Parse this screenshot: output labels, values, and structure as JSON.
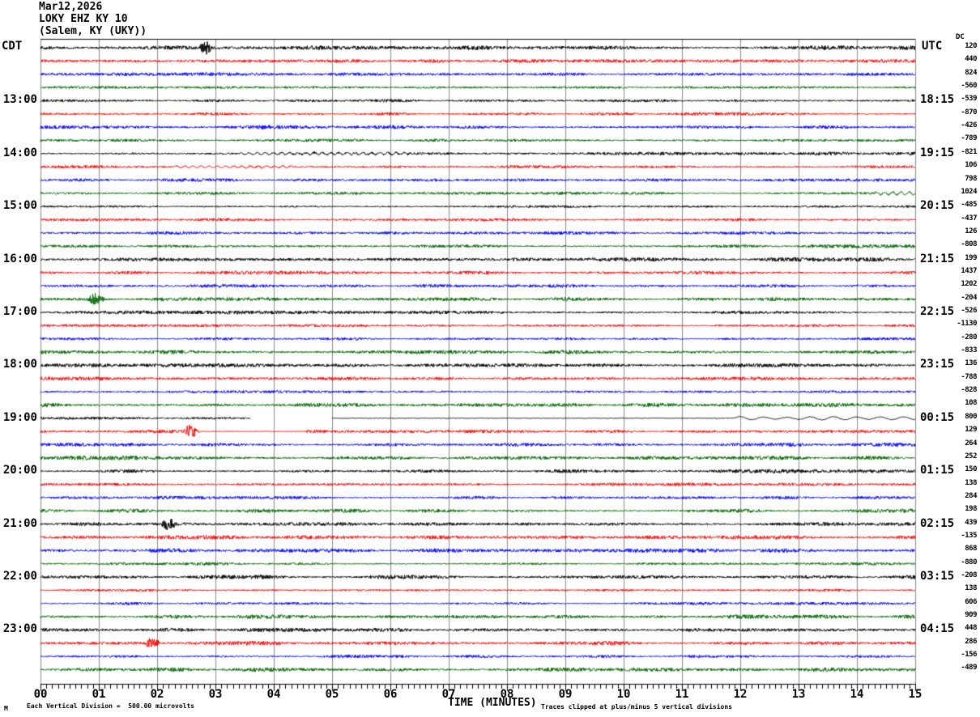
{
  "title": {
    "date": "Mar12,2026",
    "station_line": "LOKY EHZ KY 10",
    "location_line": "(Salem, KY (UKY))"
  },
  "axes": {
    "left_header": "CDT",
    "right_header": "UTC",
    "dc_header": "DC",
    "x_title": "TIME (MINUTES)",
    "x_ticks": [
      "00",
      "01",
      "02",
      "03",
      "04",
      "05",
      "06",
      "07",
      "08",
      "09",
      "10",
      "11",
      "12",
      "13",
      "14",
      "15"
    ],
    "left_hour_labels": [
      {
        "row": 5,
        "text": "13:00"
      },
      {
        "row": 9,
        "text": "14:00"
      },
      {
        "row": 13,
        "text": "15:00"
      },
      {
        "row": 17,
        "text": "16:00"
      },
      {
        "row": 21,
        "text": "17:00"
      },
      {
        "row": 25,
        "text": "18:00"
      },
      {
        "row": 29,
        "text": "19:00"
      },
      {
        "row": 33,
        "text": "20:00"
      },
      {
        "row": 37,
        "text": "21:00"
      },
      {
        "row": 41,
        "text": "22:00"
      },
      {
        "row": 45,
        "text": "23:00"
      }
    ],
    "right_hour_labels": [
      {
        "row": 5,
        "text": "18:15"
      },
      {
        "row": 9,
        "text": "19:15"
      },
      {
        "row": 13,
        "text": "20:15"
      },
      {
        "row": 17,
        "text": "21:15"
      },
      {
        "row": 21,
        "text": "22:15"
      },
      {
        "row": 25,
        "text": "23:15"
      },
      {
        "row": 29,
        "text": "00:15"
      },
      {
        "row": 33,
        "text": "01:15"
      },
      {
        "row": 37,
        "text": "02:15"
      },
      {
        "row": 41,
        "text": "03:15"
      },
      {
        "row": 45,
        "text": "04:15"
      }
    ]
  },
  "footer": {
    "corner_mark": "M",
    "scale_note": "Each Vertical Division =  500.00 microvolts",
    "clip_note": "Traces clipped at plus/minus 5 vertical divisions"
  },
  "chart_data": {
    "type": "line",
    "subtype": "helicorder-seismogram",
    "station": "LOKY EHZ KY 10",
    "location": "Salem, KY (UKY)",
    "date": "Mar12,2026",
    "rows": 48,
    "row_duration_minutes": 15,
    "x_range_minutes": [
      0,
      15
    ],
    "traces_per_hour": 4,
    "trace_color_cycle": [
      "#000000",
      "#ff0000",
      "#0000ff",
      "#006600"
    ],
    "grid_color": "#888888",
    "volts_per_division": "500.00 microvolts",
    "clip_divisions": 5,
    "dc_offsets": [
      120,
      440,
      824,
      -560,
      -539,
      -870,
      -426,
      -789,
      -821,
      106,
      798,
      1024,
      -485,
      -437,
      126,
      -808,
      199,
      1437,
      1202,
      -204,
      -526,
      -1130,
      -280,
      -833,
      136,
      -788,
      -828,
      108,
      800,
      129,
      264,
      252,
      150,
      138,
      284,
      198,
      439,
      -135,
      868,
      -880,
      -208,
      138,
      606,
      909,
      448,
      286,
      -156,
      -489
    ],
    "events": [
      {
        "row": 1,
        "type": "burst",
        "start": 2.7,
        "end": 2.98,
        "amp": 9.0
      },
      {
        "row": 9,
        "type": "wavy",
        "start": 3.4,
        "end": 6.3,
        "amp": 2.0
      },
      {
        "row": 10,
        "type": "wavy",
        "start": 2.3,
        "end": 4.3,
        "amp": 1.8
      },
      {
        "row": 12,
        "type": "wavy",
        "start": 14.3,
        "end": 15.0,
        "amp": 3.0
      },
      {
        "row": 20,
        "type": "burst",
        "start": 0.78,
        "end": 1.12,
        "amp": 8.0
      },
      {
        "row": 29,
        "type": "gap",
        "start": 3.6,
        "end": 5.0,
        "amp": 0
      },
      {
        "row": 29,
        "type": "quiet",
        "start": 5.0,
        "end": 11.9,
        "amp": 0.35
      },
      {
        "row": 29,
        "type": "lowfreq",
        "start": 11.9,
        "end": 15.0,
        "amp": 2.2
      },
      {
        "row": 30,
        "type": "burst",
        "start": 2.43,
        "end": 2.72,
        "amp": 9.0
      },
      {
        "row": 30,
        "type": "quiet",
        "start": 2.72,
        "end": 4.55,
        "amp": 0.4
      },
      {
        "row": 37,
        "type": "burst",
        "start": 2.04,
        "end": 2.36,
        "amp": 8.0
      },
      {
        "row": 46,
        "type": "burst",
        "start": 1.75,
        "end": 2.08,
        "amp": 7.0
      }
    ]
  }
}
